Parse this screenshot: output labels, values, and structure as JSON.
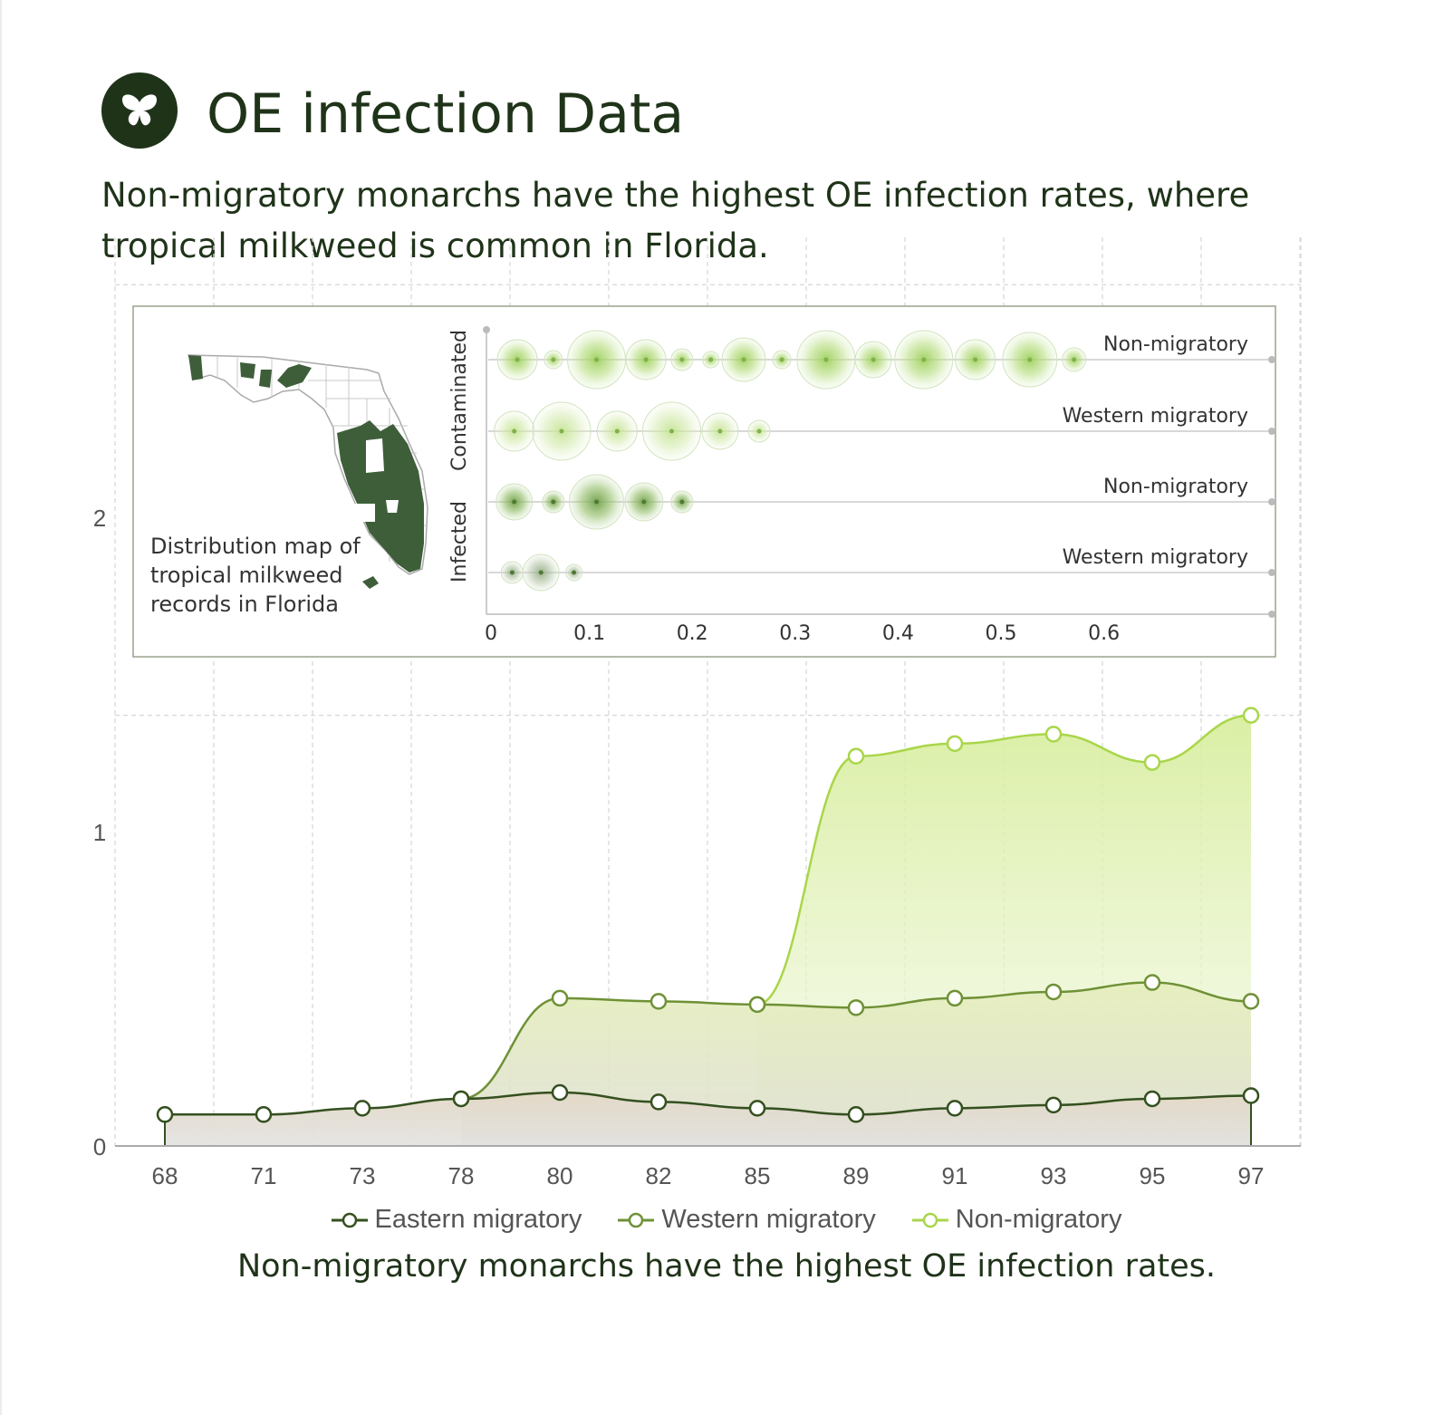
{
  "header": {
    "logo_icon": "butterfly-icon",
    "title": "OE infection Data",
    "subtitle": "Non-migratory monarchs have the highest OE infection rates, where tropical milkweed is common in Florida."
  },
  "footer": {
    "caption": "Non-migratory monarchs have the highest OE infection rates."
  },
  "inset": {
    "map_caption": [
      "Distribution map of",
      "tropical milkweed",
      "records in Florida"
    ],
    "map_icon": "florida-map-icon",
    "group_labels": [
      "Contaminated",
      "Infected"
    ]
  },
  "colors": {
    "eastern": "#34501f",
    "western": "#6f9136",
    "non_migratory": "#a9d64a",
    "text": "#1f3319",
    "map_fill": "#3e5e3a"
  },
  "chart_data": [
    {
      "type": "area",
      "title": "",
      "xlabel": "",
      "ylabel": "",
      "categories": [
        "68",
        "71",
        "73",
        "78",
        "80",
        "82",
        "85",
        "89",
        "91",
        "93",
        "95",
        "97"
      ],
      "series": [
        {
          "name": "Eastern migratory",
          "values": [
            0.1,
            0.1,
            0.12,
            0.15,
            0.17,
            0.14,
            0.12,
            0.1,
            0.12,
            0.13,
            0.15,
            0.16
          ]
        },
        {
          "name": "Western migratory",
          "values": [
            null,
            null,
            null,
            0.15,
            0.47,
            0.46,
            0.45,
            0.44,
            0.47,
            0.49,
            0.52,
            0.46
          ]
        },
        {
          "name": "Non-migratory",
          "values": [
            null,
            null,
            null,
            null,
            null,
            null,
            0.45,
            1.24,
            1.28,
            1.31,
            1.22,
            1.37
          ]
        }
      ],
      "ylim": [
        0,
        2.6
      ],
      "yticks": [
        "0",
        "1",
        "2"
      ],
      "legend": "bottom",
      "grid": true
    },
    {
      "type": "scatter",
      "title": "",
      "xticks": [
        "0",
        "0.1",
        "0.2",
        "0.3",
        "0.4",
        "0.5",
        "0.6"
      ],
      "xlim": [
        0,
        0.76
      ],
      "rows": [
        {
          "label": "Non-migratory",
          "group": "Contaminated",
          "points": [
            {
              "x": 0.03,
              "size": 22
            },
            {
              "x": 0.065,
              "size": 10
            },
            {
              "x": 0.107,
              "size": 32
            },
            {
              "x": 0.155,
              "size": 22
            },
            {
              "x": 0.19,
              "size": 12
            },
            {
              "x": 0.218,
              "size": 9
            },
            {
              "x": 0.25,
              "size": 24
            },
            {
              "x": 0.287,
              "size": 10
            },
            {
              "x": 0.33,
              "size": 32
            },
            {
              "x": 0.376,
              "size": 20
            },
            {
              "x": 0.425,
              "size": 32
            },
            {
              "x": 0.475,
              "size": 22
            },
            {
              "x": 0.528,
              "size": 30
            },
            {
              "x": 0.571,
              "size": 13
            }
          ]
        },
        {
          "label": "Western migratory",
          "group": "Contaminated",
          "points": [
            {
              "x": 0.027,
              "size": 22
            },
            {
              "x": 0.073,
              "size": 32
            },
            {
              "x": 0.127,
              "size": 22
            },
            {
              "x": 0.18,
              "size": 32
            },
            {
              "x": 0.227,
              "size": 20
            },
            {
              "x": 0.265,
              "size": 12
            }
          ]
        },
        {
          "label": "Non-migratory",
          "group": "Infected",
          "points": [
            {
              "x": 0.027,
              "size": 20
            },
            {
              "x": 0.065,
              "size": 12
            },
            {
              "x": 0.107,
              "size": 30
            },
            {
              "x": 0.153,
              "size": 21
            },
            {
              "x": 0.19,
              "size": 12
            }
          ]
        },
        {
          "label": "Western migratory",
          "group": "Infected",
          "points": [
            {
              "x": 0.025,
              "size": 12
            },
            {
              "x": 0.053,
              "size": 20
            },
            {
              "x": 0.085,
              "size": 9
            }
          ]
        }
      ]
    }
  ]
}
